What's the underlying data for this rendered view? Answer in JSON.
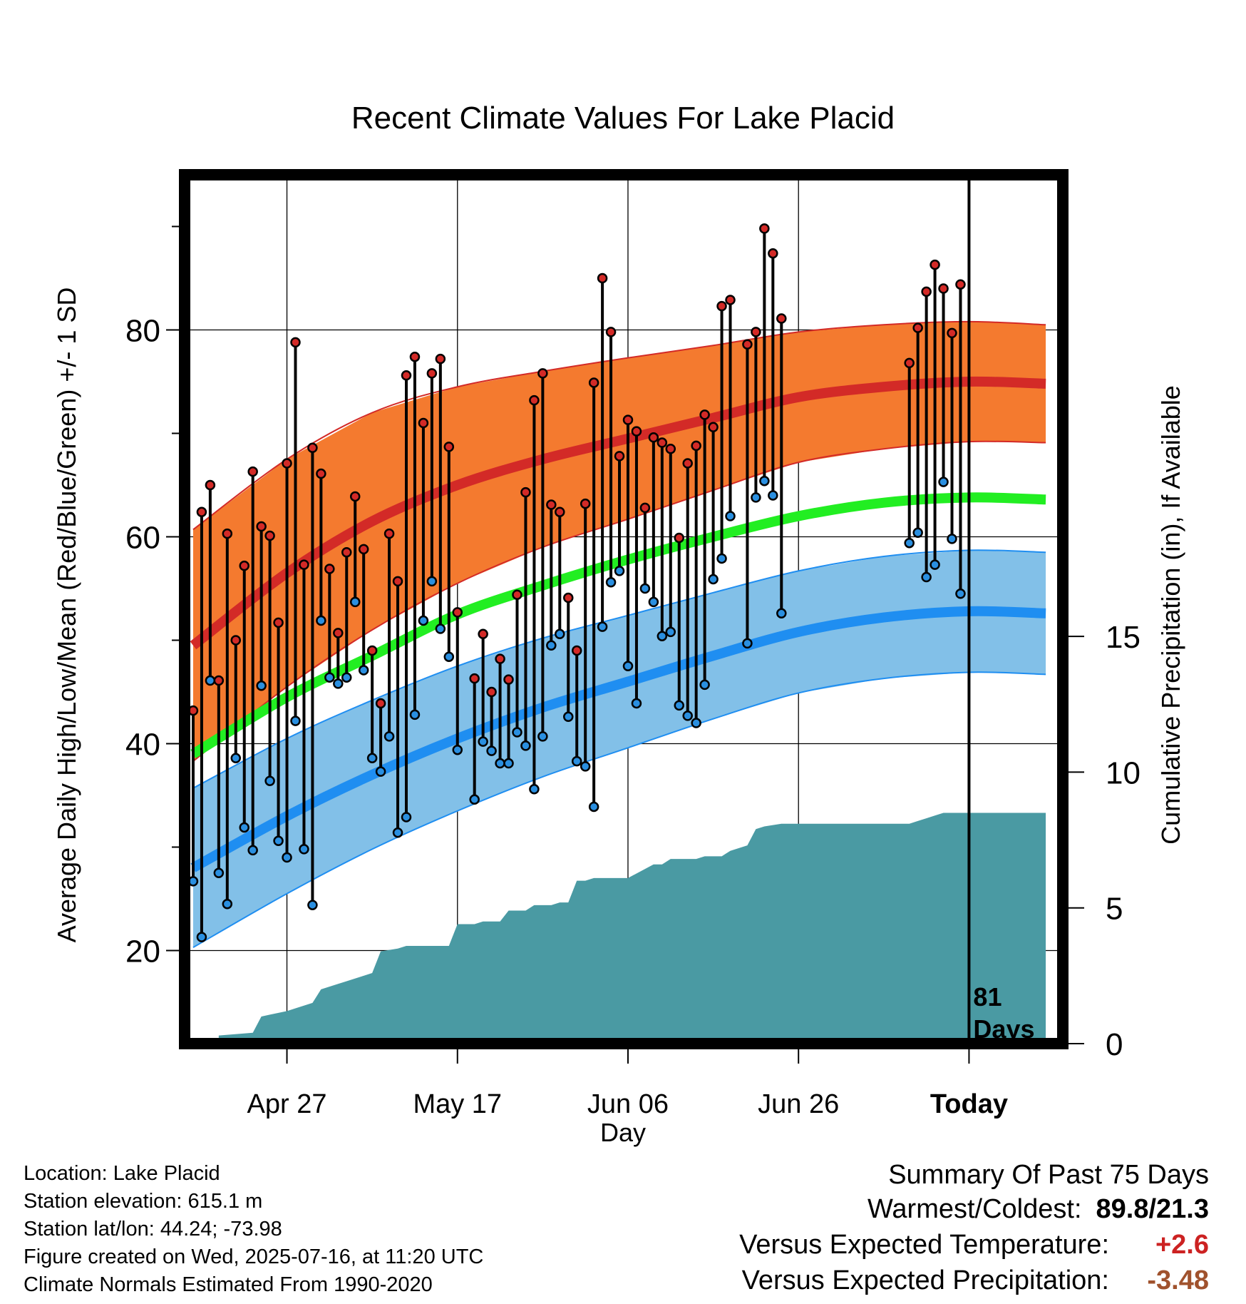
{
  "chart_data": {
    "type": "line",
    "title": "Recent Climate Values For Lake Placid",
    "xlabel": "Day",
    "ylabel": "Average Daily High/Low/Mean (Red/Blue/Green) +/- 1 SD",
    "y2label": "Cumulative Precipitation (in), If Available",
    "x_range_days": [
      -92,
      11
    ],
    "ylim": [
      11,
      95
    ],
    "y2lim": [
      0,
      32
    ],
    "y_ticks": [
      20,
      40,
      60,
      80
    ],
    "y2_ticks": [
      0,
      5,
      10,
      15
    ],
    "x_ticks": [
      {
        "day": -80,
        "label": "Apr 27"
      },
      {
        "day": -60,
        "label": "May 17"
      },
      {
        "day": -40,
        "label": "Jun 06"
      },
      {
        "day": -20,
        "label": "Jun 26"
      },
      {
        "day": 0,
        "label": "Today"
      }
    ],
    "today_label_number": "81",
    "today_label_unit": "Days",
    "grid": true,
    "colors": {
      "high_band": "#f47a2f",
      "high_mean": "#d32a27",
      "low_band": "#82c0e8",
      "low_mean": "#1f8ef1",
      "mean": "#22ee22",
      "precip": "#4a9aa3",
      "high_point": "#d32a27",
      "low_point": "#2a8fe0"
    },
    "normals": {
      "days": [
        -91,
        -80,
        -70,
        -60,
        -50,
        -40,
        -30,
        -20,
        -10,
        0,
        9
      ],
      "high": [
        49.5,
        56.5,
        61.5,
        65.0,
        67.5,
        69.5,
        71.5,
        73.5,
        74.5,
        75.0,
        74.8
      ],
      "high_sd": [
        11.2,
        11.0,
        10.5,
        9.5,
        8.5,
        7.8,
        7.0,
        6.3,
        6.0,
        5.8,
        5.7
      ],
      "low": [
        28.0,
        33.0,
        37.0,
        40.5,
        43.5,
        46.0,
        48.5,
        50.8,
        52.2,
        52.8,
        52.6
      ],
      "low_sd": [
        7.7,
        7.5,
        7.2,
        7.0,
        6.7,
        6.4,
        6.1,
        5.9,
        5.9,
        5.9,
        5.9
      ],
      "mean": [
        39.0,
        44.5,
        48.5,
        52.5,
        55.3,
        57.8,
        60.0,
        62.0,
        63.3,
        63.8,
        63.6
      ]
    },
    "observations": [
      {
        "day": -91,
        "high": 43.2,
        "low": 26.7
      },
      {
        "day": -90,
        "high": 62.4,
        "low": 21.3
      },
      {
        "day": -89,
        "high": 65.0,
        "low": 46.1
      },
      {
        "day": -88,
        "high": 46.1,
        "low": 27.5
      },
      {
        "day": -87,
        "high": 60.3,
        "low": 24.5
      },
      {
        "day": -86,
        "high": 50.0,
        "low": 38.6
      },
      {
        "day": -85,
        "high": 57.2,
        "low": 31.9
      },
      {
        "day": -84,
        "high": 66.3,
        "low": 29.7
      },
      {
        "day": -83,
        "high": 61.0,
        "low": 45.6
      },
      {
        "day": -82,
        "high": 60.1,
        "low": 36.4
      },
      {
        "day": -81,
        "high": 51.7,
        "low": 30.6
      },
      {
        "day": -80,
        "high": 67.1,
        "low": 29.0
      },
      {
        "day": -79,
        "high": 78.8,
        "low": 42.2
      },
      {
        "day": -78,
        "high": 57.3,
        "low": 29.8
      },
      {
        "day": -77,
        "high": 68.6,
        "low": 24.4
      },
      {
        "day": -76,
        "high": 66.1,
        "low": 51.9
      },
      {
        "day": -75,
        "high": 56.9,
        "low": 46.4
      },
      {
        "day": -74,
        "high": 50.7,
        "low": 45.8
      },
      {
        "day": -73,
        "high": 58.5,
        "low": 46.4
      },
      {
        "day": -72,
        "high": 63.9,
        "low": 53.7
      },
      {
        "day": -71,
        "high": 58.8,
        "low": 47.1
      },
      {
        "day": -70,
        "high": 49.0,
        "low": 38.6
      },
      {
        "day": -69,
        "high": 43.9,
        "low": 37.3
      },
      {
        "day": -68,
        "high": 60.3,
        "low": 40.7
      },
      {
        "day": -67,
        "high": 55.7,
        "low": 31.4
      },
      {
        "day": -66,
        "high": 75.6,
        "low": 32.9
      },
      {
        "day": -65,
        "high": 77.4,
        "low": 42.8
      },
      {
        "day": -64,
        "high": 71.0,
        "low": 51.9
      },
      {
        "day": -63,
        "high": 75.8,
        "low": 55.7
      },
      {
        "day": -62,
        "high": 77.2,
        "low": 51.1
      },
      {
        "day": -61,
        "high": 68.7,
        "low": 48.4
      },
      {
        "day": -60,
        "high": 52.7,
        "low": 39.4
      },
      {
        "day": -58,
        "high": 46.3,
        "low": 34.6
      },
      {
        "day": -57,
        "high": 50.6,
        "low": 40.2
      },
      {
        "day": -56,
        "high": 45.0,
        "low": 39.3
      },
      {
        "day": -55,
        "high": 48.2,
        "low": 38.1
      },
      {
        "day": -54,
        "high": 46.2,
        "low": 38.1
      },
      {
        "day": -53,
        "high": 54.4,
        "low": 41.1
      },
      {
        "day": -52,
        "high": 64.3,
        "low": 39.8
      },
      {
        "day": -51,
        "high": 73.2,
        "low": 35.6
      },
      {
        "day": -50,
        "high": 75.8,
        "low": 40.7
      },
      {
        "day": -49,
        "high": 63.1,
        "low": 49.5
      },
      {
        "day": -48,
        "high": 62.4,
        "low": 50.6
      },
      {
        "day": -47,
        "high": 54.1,
        "low": 42.6
      },
      {
        "day": -46,
        "high": 49.0,
        "low": 38.3
      },
      {
        "day": -45,
        "high": 63.2,
        "low": 37.8
      },
      {
        "day": -44,
        "high": 74.9,
        "low": 33.9
      },
      {
        "day": -43,
        "high": 85.0,
        "low": 51.3
      },
      {
        "day": -42,
        "high": 79.8,
        "low": 55.6
      },
      {
        "day": -41,
        "high": 67.8,
        "low": 56.7
      },
      {
        "day": -40,
        "high": 71.3,
        "low": 47.5
      },
      {
        "day": -39,
        "high": 70.2,
        "low": 43.9
      },
      {
        "day": -38,
        "high": 62.8,
        "low": 55.0
      },
      {
        "day": -37,
        "high": 69.6,
        "low": 53.7
      },
      {
        "day": -36,
        "high": 69.1,
        "low": 50.4
      },
      {
        "day": -35,
        "high": 68.5,
        "low": 50.8
      },
      {
        "day": -34,
        "high": 59.9,
        "low": 43.7
      },
      {
        "day": -33,
        "high": 67.1,
        "low": 42.7
      },
      {
        "day": -32,
        "high": 68.8,
        "low": 42.0
      },
      {
        "day": -31,
        "high": 71.8,
        "low": 45.7
      },
      {
        "day": -30,
        "high": 70.6,
        "low": 55.9
      },
      {
        "day": -29,
        "high": 82.3,
        "low": 57.9
      },
      {
        "day": -28,
        "high": 82.9,
        "low": 62.0
      },
      {
        "day": -26,
        "high": 78.6,
        "low": 49.7
      },
      {
        "day": -25,
        "high": 79.8,
        "low": 63.8
      },
      {
        "day": -24,
        "high": 89.8,
        "low": 65.4
      },
      {
        "day": -23,
        "high": 87.4,
        "low": 64.0
      },
      {
        "day": -22,
        "high": 81.1,
        "low": 52.6
      },
      {
        "day": -7,
        "high": 76.8,
        "low": 59.4
      },
      {
        "day": -6,
        "high": 80.2,
        "low": 60.4
      },
      {
        "day": -5,
        "high": 83.7,
        "low": 56.1
      },
      {
        "day": -4,
        "high": 86.3,
        "low": 57.3
      },
      {
        "day": -3,
        "high": 84.0,
        "low": 65.3
      },
      {
        "day": -2,
        "high": 79.7,
        "low": 59.8
      },
      {
        "day": -1,
        "high": 84.4,
        "low": 54.5
      }
    ],
    "precip": {
      "days": [
        -88,
        -84,
        -83,
        -80,
        -79,
        -77,
        -76,
        -74,
        -73,
        -71,
        -70,
        -69,
        -67,
        -66,
        -61,
        -60,
        -58,
        -57,
        -55,
        -54,
        -52,
        -51,
        -49,
        -48,
        -47,
        -46,
        -45,
        -44,
        -40,
        -37,
        -36,
        -35,
        -32,
        -31,
        -29,
        -28,
        -26,
        -25,
        -24,
        -22,
        -20,
        -18,
        -10,
        -8,
        -7,
        -6,
        -5,
        -4,
        -3,
        0,
        9
      ],
      "total": [
        0.3,
        0.4,
        1.0,
        1.2,
        1.3,
        1.5,
        2.0,
        2.2,
        2.3,
        2.5,
        2.6,
        3.4,
        3.5,
        3.6,
        3.6,
        4.4,
        4.4,
        4.5,
        4.5,
        4.9,
        4.9,
        5.1,
        5.1,
        5.2,
        5.2,
        6.0,
        6.0,
        6.1,
        6.1,
        6.6,
        6.6,
        6.8,
        6.8,
        6.9,
        6.9,
        7.1,
        7.3,
        7.9,
        8.0,
        8.1,
        8.1,
        8.1,
        8.1,
        8.1,
        8.1,
        8.2,
        8.3,
        8.4,
        8.5,
        8.5,
        8.5
      ]
    }
  },
  "footer": {
    "location": "Location: Lake Placid",
    "elevation": "Station elevation: 615.1 m",
    "latlon": "Station lat/lon: 44.24; -73.98",
    "created": "Figure created on Wed, 2025-07-16, at 11:20 UTC",
    "normals": "Climate Normals Estimated From 1990-2020"
  },
  "summary": {
    "title": "Summary Of Past 75 Days",
    "extremes_label": "Warmest/Coldest:",
    "extremes_value": "89.8/21.3",
    "temp_label": "Versus Expected Temperature:",
    "temp_value": "+2.6",
    "temp_color": "#cc2222",
    "precip_label": "Versus Expected Precipitation:",
    "precip_value": "-3.48",
    "precip_color": "#a0522d"
  }
}
